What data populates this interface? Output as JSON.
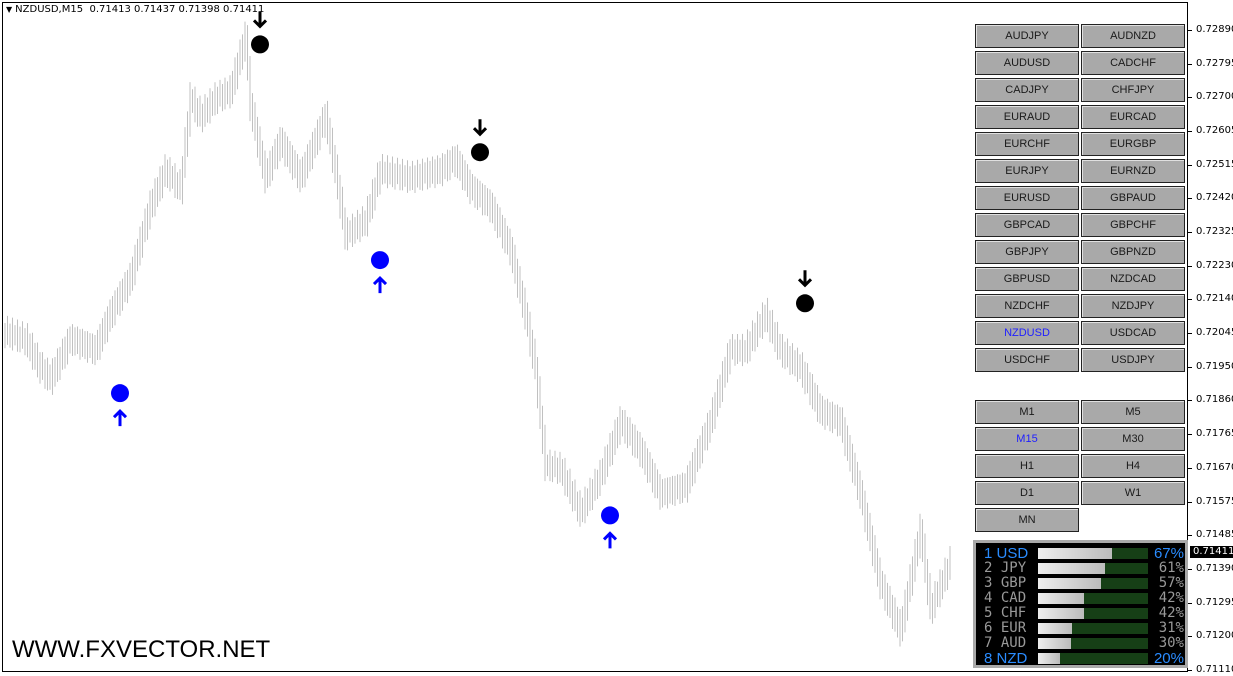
{
  "header": {
    "symbol": "NZDUSD,M15",
    "ohlc": "0.71413 0.71437 0.71398 0.71411"
  },
  "price_axis": {
    "labels": [
      "0.72890",
      "0.72795",
      "0.72700",
      "0.72605",
      "0.72515",
      "0.72420",
      "0.72325",
      "0.72230",
      "0.72140",
      "0.72045",
      "0.71950",
      "0.71860",
      "0.71765",
      "0.71670",
      "0.71575",
      "0.71485",
      "0.71390",
      "0.71295",
      "0.71200",
      "0.71110"
    ],
    "current": "0.71411"
  },
  "pairs": [
    "AUDJPY",
    "AUDNZD",
    "AUDUSD",
    "CADCHF",
    "CADJPY",
    "CHFJPY",
    "EURAUD",
    "EURCAD",
    "EURCHF",
    "EURGBP",
    "EURJPY",
    "EURNZD",
    "EURUSD",
    "GBPAUD",
    "GBPCAD",
    "GBPCHF",
    "GBPJPY",
    "GBPNZD",
    "GBPUSD",
    "NZDCAD",
    "NZDCHF",
    "NZDJPY",
    "NZDUSD",
    "USDCAD",
    "USDCHF",
    "USDJPY"
  ],
  "active_pair": "NZDUSD",
  "timeframes": [
    "M1",
    "M5",
    "M15",
    "M30",
    "H1",
    "H4",
    "D1",
    "W1",
    "MN"
  ],
  "active_timeframe": "M15",
  "strength": [
    {
      "rank": "1",
      "ccy": "USD",
      "pct": 67,
      "label": "67%"
    },
    {
      "rank": "2",
      "ccy": "JPY",
      "pct": 61,
      "label": "61%"
    },
    {
      "rank": "3",
      "ccy": "GBP",
      "pct": 57,
      "label": "57%"
    },
    {
      "rank": "4",
      "ccy": "CAD",
      "pct": 42,
      "label": "42%"
    },
    {
      "rank": "5",
      "ccy": "CHF",
      "pct": 42,
      "label": "42%"
    },
    {
      "rank": "6",
      "ccy": "EUR",
      "pct": 31,
      "label": "31%"
    },
    {
      "rank": "7",
      "ccy": "AUD",
      "pct": 30,
      "label": "30%"
    },
    {
      "rank": "8",
      "ccy": "NZD",
      "pct": 20,
      "label": "20%"
    }
  ],
  "watermark": "WWW.FXVECTOR.NET",
  "colors": {
    "bars": "#c0c0c0",
    "buy": "#0000ff",
    "sell": "#000000",
    "highlight": "#2a8cff",
    "active_button_text": "#2020ff"
  },
  "chart_data": {
    "type": "line",
    "ylim": [
      0.7111,
      0.7289
    ],
    "points": [
      [
        0,
        0.7205
      ],
      [
        4,
        0.7203
      ],
      [
        7,
        0.7195
      ],
      [
        9,
        0.7192
      ],
      [
        13,
        0.7203
      ],
      [
        18,
        0.72
      ],
      [
        21,
        0.721
      ],
      [
        25,
        0.722
      ],
      [
        29,
        0.724
      ],
      [
        32,
        0.725
      ],
      [
        35,
        0.7245
      ],
      [
        37,
        0.727
      ],
      [
        39,
        0.7265
      ],
      [
        42,
        0.727
      ],
      [
        45,
        0.7272
      ],
      [
        48,
        0.7287
      ],
      [
        49,
        0.7268
      ],
      [
        52,
        0.7248
      ],
      [
        55,
        0.7258
      ],
      [
        59,
        0.7248
      ],
      [
        64,
        0.7265
      ],
      [
        66,
        0.725
      ],
      [
        68,
        0.7232
      ],
      [
        72,
        0.7236
      ],
      [
        75,
        0.725
      ],
      [
        81,
        0.7248
      ],
      [
        87,
        0.725
      ],
      [
        90,
        0.7253
      ],
      [
        93,
        0.7245
      ],
      [
        97,
        0.724
      ],
      [
        101,
        0.7228
      ],
      [
        104,
        0.721
      ],
      [
        106,
        0.7195
      ],
      [
        108,
        0.7168
      ],
      [
        111,
        0.7167
      ],
      [
        115,
        0.7155
      ],
      [
        119,
        0.7165
      ],
      [
        123,
        0.718
      ],
      [
        127,
        0.7172
      ],
      [
        131,
        0.716
      ],
      [
        136,
        0.7162
      ],
      [
        141,
        0.718
      ],
      [
        145,
        0.72
      ],
      [
        148,
        0.72
      ],
      [
        152,
        0.721
      ],
      [
        155,
        0.72
      ],
      [
        159,
        0.7195
      ],
      [
        163,
        0.7183
      ],
      [
        167,
        0.718
      ],
      [
        171,
        0.716
      ],
      [
        175,
        0.7135
      ],
      [
        179,
        0.7122
      ],
      [
        183,
        0.715
      ],
      [
        185,
        0.7128
      ],
      [
        189,
        0.7141
      ]
    ],
    "signals": [
      {
        "type": "buy",
        "bar": 23,
        "price": 0.7188
      },
      {
        "type": "sell",
        "bar": 51,
        "price": 0.7285
      },
      {
        "type": "buy",
        "bar": 75,
        "price": 0.7225
      },
      {
        "type": "sell",
        "bar": 95,
        "price": 0.7255
      },
      {
        "type": "buy",
        "bar": 121,
        "price": 0.7154
      },
      {
        "type": "sell",
        "bar": 160,
        "price": 0.7213
      }
    ]
  }
}
